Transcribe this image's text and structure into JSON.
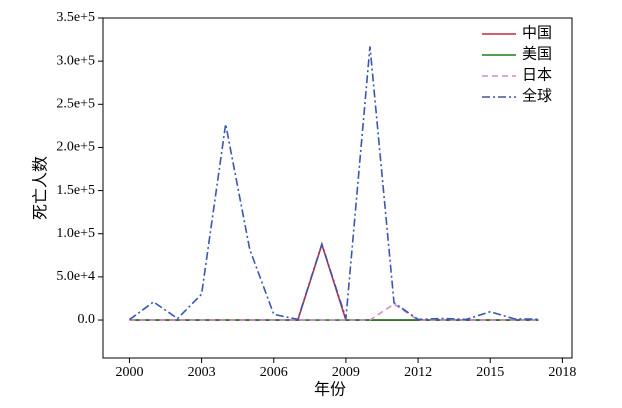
{
  "chart_data": {
    "type": "line",
    "x_label": "年份",
    "y_label": "死亡人数",
    "x": [
      2000,
      2001,
      2002,
      2003,
      2004,
      2005,
      2006,
      2007,
      2008,
      2009,
      2010,
      2011,
      2012,
      2013,
      2014,
      2015,
      2016,
      2017
    ],
    "series": [
      {
        "name": "中国",
        "color": "#c8283a",
        "dash": "solid",
        "values": [
          0,
          0,
          0,
          0,
          0,
          0,
          0,
          0,
          87500,
          0,
          0,
          0,
          0,
          0,
          0,
          0,
          0,
          0
        ]
      },
      {
        "name": "美国",
        "color": "#1e7a1e",
        "dash": "solid",
        "values": [
          0,
          0,
          0,
          0,
          0,
          0,
          0,
          0,
          0,
          0,
          0,
          0,
          0,
          0,
          0,
          0,
          0,
          0
        ]
      },
      {
        "name": "日本",
        "color": "#d68ad2",
        "dash": "dashed",
        "values": [
          0,
          0,
          0,
          0,
          0,
          0,
          0,
          0,
          0,
          0,
          0,
          18500,
          0,
          0,
          0,
          0,
          0,
          0
        ]
      },
      {
        "name": "全球",
        "color": "#3a56b0",
        "dash": "dashdot",
        "values": [
          400,
          21000,
          1700,
          30000,
          227000,
          82000,
          6600,
          700,
          88000,
          1800,
          317000,
          20000,
          700,
          1800,
          700,
          9600,
          1300,
          1000
        ]
      }
    ],
    "xlim": [
      1998.9,
      2018.4
    ],
    "ylim": [
      -44000,
      350000
    ],
    "xticks": [
      2000,
      2003,
      2006,
      2009,
      2012,
      2015,
      2018
    ],
    "yticks": [
      {
        "value": 0,
        "label": "0.0"
      },
      {
        "value": 50000,
        "label": "5.0e+4"
      },
      {
        "value": 100000,
        "label": "1.0e+5"
      },
      {
        "value": 150000,
        "label": "1.5e+5"
      },
      {
        "value": 200000,
        "label": "2.0e+5"
      },
      {
        "value": 250000,
        "label": "2.5e+5"
      },
      {
        "value": 300000,
        "label": "3.0e+5"
      },
      {
        "value": 350000,
        "label": "3.5e+5"
      }
    ],
    "legend": "upper right"
  }
}
